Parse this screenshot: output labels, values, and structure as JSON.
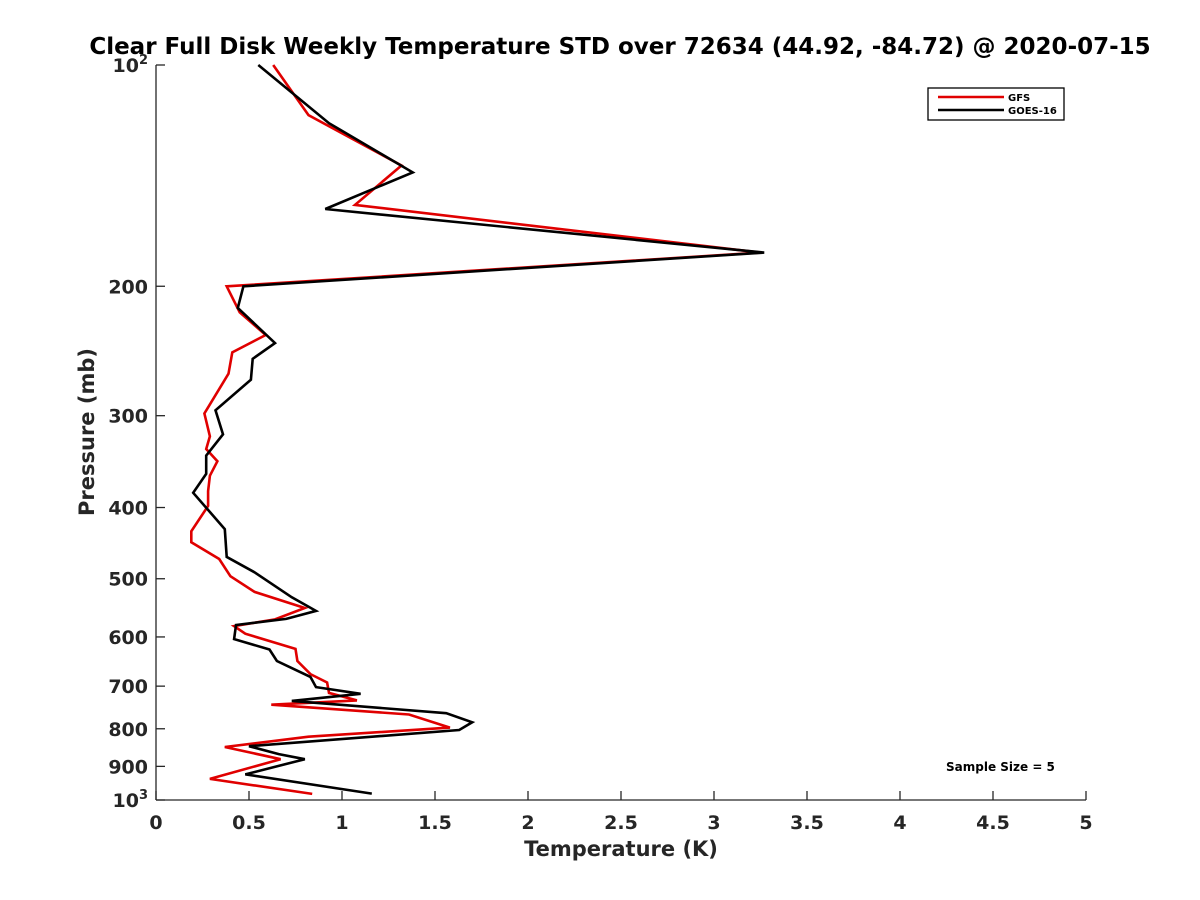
{
  "chart_data": {
    "type": "line",
    "title": "Clear Full Disk Weekly Temperature STD over 72634 (44.92, -84.72) @ 2020-07-15",
    "xlabel": "Temperature (K)",
    "ylabel": "Pressure (mb)",
    "xlim": [
      0,
      5
    ],
    "ylim": [
      100,
      1000
    ],
    "yscale": "log",
    "y_reversed": true,
    "grid": false,
    "legend_position": "top-right",
    "xticks": [
      "0",
      "0.5",
      "1",
      "1.5",
      "2",
      "2.5",
      "3",
      "3.5",
      "4",
      "4.5",
      "5"
    ],
    "yticks": [
      {
        "value": 100,
        "base": "10",
        "exp": "2"
      },
      {
        "value": 200,
        "label": "200"
      },
      {
        "value": 300,
        "label": "300"
      },
      {
        "value": 400,
        "label": "400"
      },
      {
        "value": 500,
        "label": "500"
      },
      {
        "value": 600,
        "label": "600"
      },
      {
        "value": 700,
        "label": "700"
      },
      {
        "value": 800,
        "label": "800"
      },
      {
        "value": 900,
        "label": "900"
      },
      {
        "value": 1000,
        "base": "10",
        "exp": "3"
      }
    ],
    "annotation": "Sample Size = 5",
    "series": [
      {
        "name": "GFS",
        "color": "#e00000",
        "points": [
          [
            0.63,
            100
          ],
          [
            0.82,
            117
          ],
          [
            1.32,
            137
          ],
          [
            1.07,
            155
          ],
          [
            3.25,
            180
          ],
          [
            0.38,
            200
          ],
          [
            0.45,
            217
          ],
          [
            0.59,
            233
          ],
          [
            0.41,
            246
          ],
          [
            0.39,
            263
          ],
          [
            0.26,
            298
          ],
          [
            0.29,
            320
          ],
          [
            0.27,
            333
          ],
          [
            0.33,
            346
          ],
          [
            0.29,
            362
          ],
          [
            0.28,
            380
          ],
          [
            0.28,
            398
          ],
          [
            0.19,
            431
          ],
          [
            0.19,
            446
          ],
          [
            0.34,
            470
          ],
          [
            0.4,
            496
          ],
          [
            0.53,
            521
          ],
          [
            0.8,
            548
          ],
          [
            0.64,
            568
          ],
          [
            0.42,
            580
          ],
          [
            0.48,
            594
          ],
          [
            0.75,
            623
          ],
          [
            0.76,
            647
          ],
          [
            0.83,
            674
          ],
          [
            0.92,
            692
          ],
          [
            0.93,
            715
          ],
          [
            1.08,
            732
          ],
          [
            0.62,
            742
          ],
          [
            1.36,
            765
          ],
          [
            1.58,
            797
          ],
          [
            0.82,
            820
          ],
          [
            0.37,
            847
          ],
          [
            0.67,
            880
          ],
          [
            0.29,
            936
          ],
          [
            0.84,
            981
          ]
        ]
      },
      {
        "name": "GOES-16",
        "color": "#000000",
        "points": [
          [
            0.55,
            100
          ],
          [
            0.93,
            120
          ],
          [
            1.38,
            140
          ],
          [
            0.91,
            157
          ],
          [
            3.27,
            180
          ],
          [
            0.47,
            200
          ],
          [
            0.44,
            214
          ],
          [
            0.64,
            239
          ],
          [
            0.52,
            251
          ],
          [
            0.51,
            268
          ],
          [
            0.32,
            295
          ],
          [
            0.36,
            318
          ],
          [
            0.27,
            340
          ],
          [
            0.27,
            360
          ],
          [
            0.2,
            382
          ],
          [
            0.37,
            428
          ],
          [
            0.38,
            467
          ],
          [
            0.53,
            490
          ],
          [
            0.73,
            530
          ],
          [
            0.86,
            553
          ],
          [
            0.7,
            567
          ],
          [
            0.43,
            578
          ],
          [
            0.42,
            604
          ],
          [
            0.61,
            624
          ],
          [
            0.65,
            647
          ],
          [
            0.83,
            680
          ],
          [
            0.86,
            702
          ],
          [
            1.1,
            717
          ],
          [
            0.73,
            733
          ],
          [
            1.56,
            762
          ],
          [
            1.7,
            784
          ],
          [
            1.63,
            803
          ],
          [
            0.5,
            845
          ],
          [
            0.66,
            866
          ],
          [
            0.8,
            880
          ],
          [
            0.48,
            923
          ],
          [
            1.16,
            980
          ]
        ]
      }
    ]
  }
}
